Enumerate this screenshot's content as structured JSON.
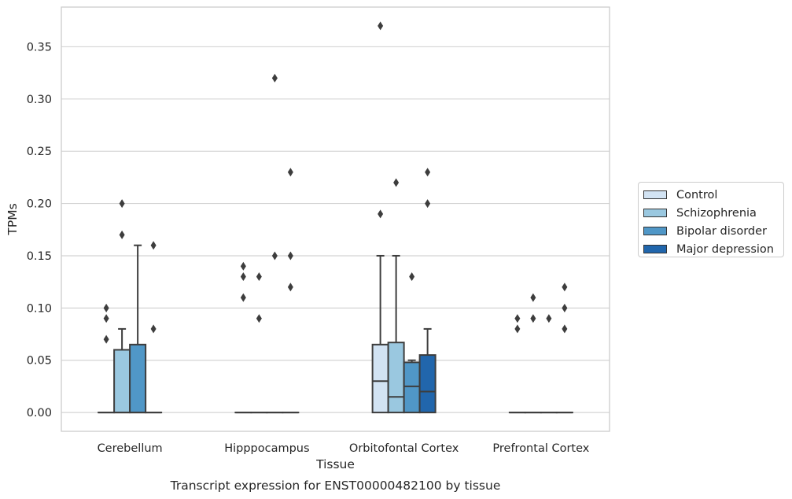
{
  "chart_data": {
    "type": "box",
    "caption": "Transcript expression for ENST00000482100 by tissue",
    "xlabel": "Tissue",
    "ylabel": "TPMs",
    "ylim": [
      -0.018,
      0.388
    ],
    "yticks": [
      "0.00",
      "0.05",
      "0.10",
      "0.15",
      "0.20",
      "0.25",
      "0.30",
      "0.35"
    ],
    "grid": "horizontal",
    "legend_position": "right",
    "categories": [
      "Cerebellum",
      "Hipppocampus",
      "Orbitofontal Cortex",
      "Prefrontal Cortex"
    ],
    "series": [
      {
        "name": "Control",
        "color": "#d2e3f3",
        "boxes": [
          {
            "q1": 0.0,
            "median": 0.0,
            "q3": 0.0,
            "whisker_low": 0.0,
            "whisker_high": 0.0,
            "outliers": [
              0.07,
              0.09,
              0.1
            ]
          },
          {
            "q1": 0.0,
            "median": 0.0,
            "q3": 0.0,
            "whisker_low": 0.0,
            "whisker_high": 0.0,
            "outliers": [
              0.11,
              0.13,
              0.14
            ]
          },
          {
            "q1": 0.0,
            "median": 0.03,
            "q3": 0.065,
            "whisker_low": 0.0,
            "whisker_high": 0.15,
            "outliers": [
              0.19,
              0.37
            ]
          },
          {
            "q1": 0.0,
            "median": 0.0,
            "q3": 0.0,
            "whisker_low": 0.0,
            "whisker_high": 0.0,
            "outliers": [
              0.08,
              0.09
            ]
          }
        ]
      },
      {
        "name": "Schizophrenia",
        "color": "#9ac8e0",
        "boxes": [
          {
            "q1": 0.0,
            "median": 0.0,
            "q3": 0.06,
            "whisker_low": 0.0,
            "whisker_high": 0.08,
            "outliers": [
              0.17,
              0.2
            ]
          },
          {
            "q1": 0.0,
            "median": 0.0,
            "q3": 0.0,
            "whisker_low": 0.0,
            "whisker_high": 0.0,
            "outliers": [
              0.09,
              0.13
            ]
          },
          {
            "q1": 0.0,
            "median": 0.015,
            "q3": 0.067,
            "whisker_low": 0.0,
            "whisker_high": 0.15,
            "outliers": [
              0.22
            ]
          },
          {
            "q1": 0.0,
            "median": 0.0,
            "q3": 0.0,
            "whisker_low": 0.0,
            "whisker_high": 0.0,
            "outliers": [
              0.09,
              0.11
            ]
          }
        ]
      },
      {
        "name": "Bipolar disorder",
        "color": "#5097c7",
        "boxes": [
          {
            "q1": 0.0,
            "median": 0.0,
            "q3": 0.065,
            "whisker_low": 0.0,
            "whisker_high": 0.16,
            "outliers": []
          },
          {
            "q1": 0.0,
            "median": 0.0,
            "q3": 0.0,
            "whisker_low": 0.0,
            "whisker_high": 0.0,
            "outliers": [
              0.15,
              0.32
            ]
          },
          {
            "q1": 0.0,
            "median": 0.025,
            "q3": 0.048,
            "whisker_low": 0.0,
            "whisker_high": 0.05,
            "outliers": [
              0.13
            ]
          },
          {
            "q1": 0.0,
            "median": 0.0,
            "q3": 0.0,
            "whisker_low": 0.0,
            "whisker_high": 0.0,
            "outliers": [
              0.09
            ]
          }
        ]
      },
      {
        "name": "Major depression",
        "color": "#2166ac",
        "boxes": [
          {
            "q1": 0.0,
            "median": 0.0,
            "q3": 0.0,
            "whisker_low": 0.0,
            "whisker_high": 0.0,
            "outliers": [
              0.08,
              0.16
            ]
          },
          {
            "q1": 0.0,
            "median": 0.0,
            "q3": 0.0,
            "whisker_low": 0.0,
            "whisker_high": 0.0,
            "outliers": [
              0.12,
              0.15,
              0.23
            ]
          },
          {
            "q1": 0.0,
            "median": 0.02,
            "q3": 0.055,
            "whisker_low": 0.0,
            "whisker_high": 0.08,
            "outliers": [
              0.2,
              0.23
            ]
          },
          {
            "q1": 0.0,
            "median": 0.0,
            "q3": 0.0,
            "whisker_low": 0.0,
            "whisker_high": 0.0,
            "outliers": [
              0.08,
              0.1,
              0.12
            ]
          }
        ]
      }
    ]
  }
}
